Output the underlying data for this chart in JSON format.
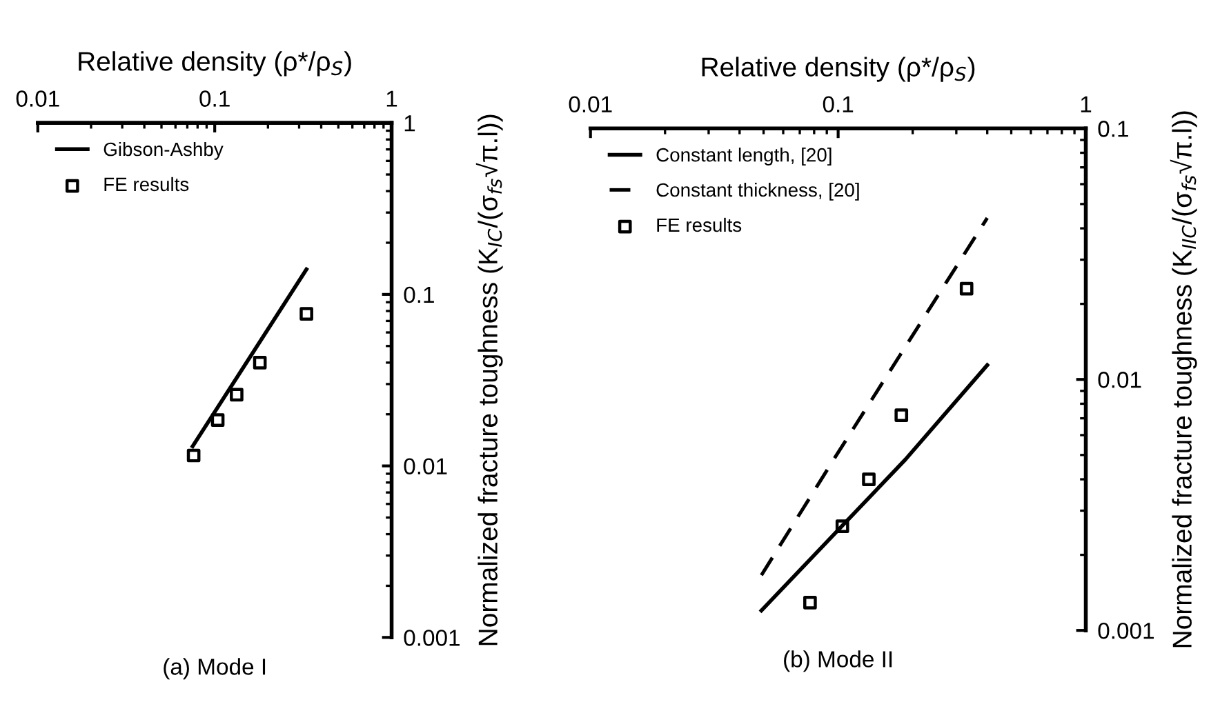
{
  "chart_data": [
    {
      "type": "line",
      "xlabel": "Relative density (ρ*/ρ$_{S}$)",
      "ylabel": "Normalized fracture toughness (K$_{IC}$/(σ$_{fs}$√π.l))",
      "log": "xy",
      "xlim": [
        0.01,
        1
      ],
      "ylim": [
        0.001,
        1
      ],
      "xticks": [
        0.01,
        0.1,
        1
      ],
      "yticks": [
        0.001,
        0.01,
        0.1,
        1
      ],
      "legend": "top left",
      "annotations": [
        "(a) Mode I"
      ],
      "series": [
        {
          "name": "Gibson-Ashby",
          "color": "#000000",
          "line_style": "solid",
          "x": [
            0.075,
            0.33
          ],
          "values": [
            0.013,
            0.14
          ]
        },
        {
          "name": "FE results",
          "type": "scatter",
          "color": "#000000",
          "marker": "square",
          "x": [
            0.076,
            0.104,
            0.133,
            0.18,
            0.33
          ],
          "values": [
            0.0115,
            0.0185,
            0.026,
            0.04,
            0.077
          ]
        }
      ]
    },
    {
      "type": "line",
      "xlabel": "Relative density (ρ*/ρ$_{S}$)",
      "ylabel": "Normalized fracture toughness (K$_{IIC}$/(σ$_{fs}$√π.l))",
      "log": "xy",
      "xlim": [
        0.01,
        1
      ],
      "ylim": [
        0.001,
        0.1
      ],
      "xticks": [
        0.01,
        0.1,
        1
      ],
      "yticks": [
        0.001,
        0.01,
        0.1
      ],
      "legend": "top left",
      "annotations": [
        "(b) Mode II"
      ],
      "series": [
        {
          "name": "Constant length, [20]",
          "color": "#000000",
          "line_style": "solid",
          "x": [
            0.049,
            0.187,
            0.4
          ],
          "values": [
            0.0012,
            0.0048,
            0.0114
          ]
        },
        {
          "name": "Constant thickness, [20]",
          "color": "#000000",
          "line_style": "dashed",
          "x": [
            0.049,
            0.096,
            0.4
          ],
          "values": [
            0.00166,
            0.0048,
            0.044
          ]
        },
        {
          "name": "FE results",
          "type": "scatter",
          "color": "#000000",
          "marker": "square",
          "x": [
            0.077,
            0.104,
            0.133,
            0.18,
            0.33
          ],
          "values": [
            0.00129,
            0.0026,
            0.004,
            0.0072,
            0.023
          ]
        }
      ]
    }
  ]
}
